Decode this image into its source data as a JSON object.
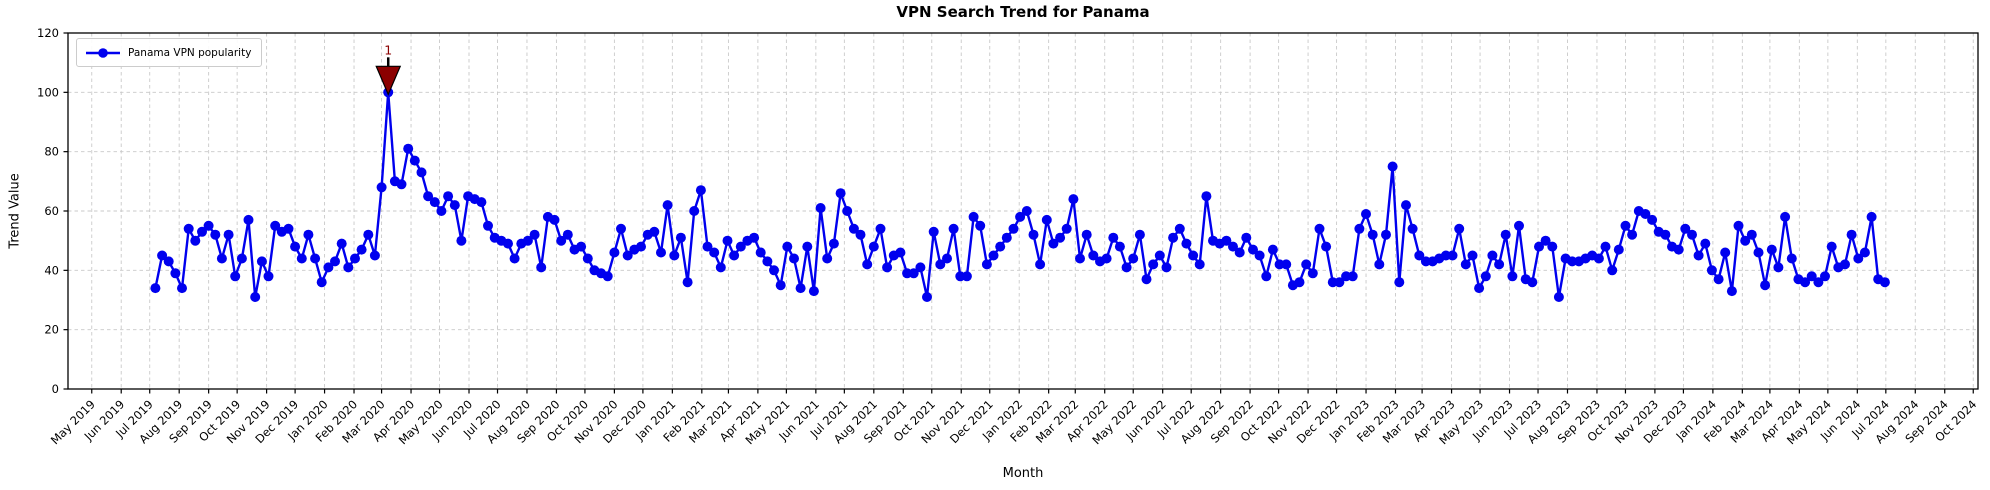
{
  "chart_data": {
    "type": "line",
    "title": "VPN Search Trend for Panama",
    "xlabel": "Month",
    "ylabel": "Trend Value",
    "grid": true,
    "grid_color": "#c9c9c9",
    "line_color": "#0000ee",
    "marker": "circle",
    "ylim": [
      0,
      120
    ],
    "yticks": [
      0,
      20,
      40,
      60,
      80,
      100,
      120
    ],
    "legend": {
      "position": "upper-left",
      "entries": [
        {
          "label": "Panama VPN popularity",
          "color": "#0000ee",
          "marker": "circle"
        }
      ]
    },
    "annotation": {
      "label": "1",
      "color": "#8b0000",
      "arrow": "filled-wedge-down",
      "target": "max-point"
    },
    "x_tick_labels": [
      "May 2019",
      "Jun 2019",
      "Jul 2019",
      "Aug 2019",
      "Sep 2019",
      "Oct 2019",
      "Nov 2019",
      "Dec 2019",
      "Jan 2020",
      "Feb 2020",
      "Mar 2020",
      "Apr 2020",
      "May 2020",
      "Jun 2020",
      "Jul 2020",
      "Aug 2020",
      "Sep 2020",
      "Oct 2020",
      "Nov 2020",
      "Dec 2020",
      "Jan 2021",
      "Feb 2021",
      "Mar 2021",
      "Apr 2021",
      "May 2021",
      "Jun 2021",
      "Jul 2021",
      "Aug 2021",
      "Sep 2021",
      "Oct 2021",
      "Nov 2021",
      "Dec 2021",
      "Jan 2022",
      "Feb 2022",
      "Mar 2022",
      "Apr 2022",
      "May 2022",
      "Jun 2022",
      "Jul 2022",
      "Aug 2022",
      "Sep 2022",
      "Oct 2022",
      "Nov 2022",
      "Dec 2022",
      "Jan 2023",
      "Feb 2023",
      "Mar 2023",
      "Apr 2023",
      "May 2023",
      "Jun 2023",
      "Jul 2023",
      "Aug 2023",
      "Sep 2023",
      "Oct 2023",
      "Nov 2023",
      "Dec 2023",
      "Jan 2024",
      "Feb 2024",
      "Mar 2024",
      "Apr 2024",
      "May 2024",
      "Jun 2024",
      "Jul 2024",
      "Aug 2024",
      "Sep 2024",
      "Oct 2024"
    ],
    "x_start_date": "2019-07-07",
    "x_interval_days": 7,
    "series": [
      {
        "name": "Panama VPN popularity",
        "values": [
          34,
          45,
          43,
          39,
          34,
          54,
          50,
          53,
          55,
          52,
          44,
          52,
          38,
          44,
          57,
          31,
          43,
          38,
          55,
          53,
          54,
          48,
          44,
          52,
          44,
          36,
          41,
          43,
          49,
          41,
          44,
          47,
          52,
          45,
          68,
          100,
          70,
          69,
          81,
          77,
          73,
          65,
          63,
          60,
          65,
          62,
          50,
          65,
          64,
          63,
          55,
          51,
          50,
          49,
          44,
          49,
          50,
          52,
          41,
          58,
          57,
          50,
          52,
          47,
          48,
          44,
          40,
          39,
          38,
          46,
          54,
          45,
          47,
          48,
          52,
          53,
          46,
          62,
          45,
          51,
          36,
          60,
          67,
          48,
          46,
          41,
          50,
          45,
          48,
          50,
          51,
          46,
          43,
          40,
          35,
          48,
          44,
          34,
          48,
          33,
          61,
          44,
          49,
          66,
          60,
          54,
          52,
          42,
          48,
          54,
          41,
          45,
          46,
          39,
          39,
          41,
          31,
          53,
          42,
          44,
          54,
          38,
          38,
          58,
          55,
          42,
          45,
          48,
          51,
          54,
          58,
          60,
          52,
          42,
          57,
          49,
          51,
          54,
          64,
          44,
          52,
          45,
          43,
          44,
          51,
          48,
          41,
          44,
          52,
          37,
          42,
          45,
          41,
          51,
          54,
          49,
          45,
          42,
          65,
          50,
          49,
          50,
          48,
          46,
          51,
          47,
          45,
          38,
          47,
          42,
          42,
          35,
          36,
          42,
          39,
          54,
          48,
          36,
          36,
          38,
          38,
          54,
          59,
          52,
          42,
          52,
          75,
          36,
          62,
          54,
          45,
          43,
          43,
          44,
          45,
          45,
          54,
          42,
          45,
          34,
          38,
          45,
          42,
          52,
          38,
          55,
          37,
          36,
          48,
          50,
          48,
          31,
          44,
          43,
          43,
          44,
          45,
          44,
          48,
          40,
          47,
          55,
          52,
          60,
          59,
          57,
          53,
          52,
          48,
          47,
          54,
          52,
          45,
          49,
          40,
          37,
          46,
          33,
          55,
          50,
          52,
          46,
          35,
          47,
          41,
          58,
          44,
          37,
          36,
          38,
          36,
          38,
          48,
          41,
          42,
          52,
          44,
          46,
          58,
          37,
          36
        ]
      }
    ]
  }
}
